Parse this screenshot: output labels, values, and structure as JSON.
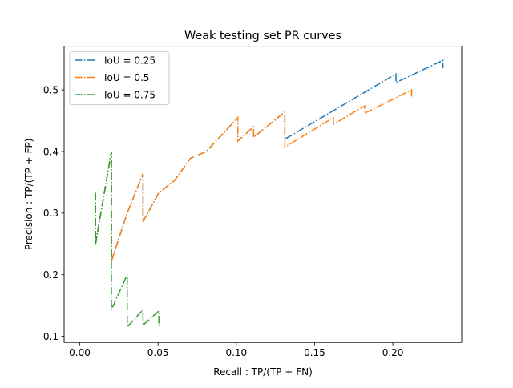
{
  "chart_data": {
    "type": "line",
    "title": "Weak testing set PR curves",
    "xlabel": "Recall : TP/(TP + FN)",
    "ylabel": "Precision : TP/(TP + FP)",
    "xlim": [
      -0.01,
      0.244
    ],
    "ylim": [
      0.09,
      0.571
    ],
    "xticks": [
      0.0,
      0.05,
      0.1,
      0.15,
      0.2
    ],
    "xtick_labels": [
      "0.00",
      "0.05",
      "0.10",
      "0.15",
      "0.20"
    ],
    "yticks": [
      0.1,
      0.2,
      0.3,
      0.4,
      0.5
    ],
    "ytick_labels": [
      "0.1",
      "0.2",
      "0.3",
      "0.4",
      "0.5"
    ],
    "grid": false,
    "legend_position": "top-left",
    "line_style": "dash-dot",
    "series": [
      {
        "name": "IoU = 0.25",
        "color": "#1f77b4",
        "points": [
          [
            0.0101,
            0.333
          ],
          [
            0.0101,
            0.25
          ],
          [
            0.0202,
            0.4
          ],
          [
            0.0202,
            0.222
          ],
          [
            0.0303,
            0.3
          ],
          [
            0.0404,
            0.364
          ],
          [
            0.0404,
            0.286
          ],
          [
            0.0505,
            0.333
          ],
          [
            0.0606,
            0.353
          ],
          [
            0.0707,
            0.389
          ],
          [
            0.0808,
            0.4
          ],
          [
            0.101,
            0.455
          ],
          [
            0.101,
            0.417
          ],
          [
            0.111,
            0.44
          ],
          [
            0.111,
            0.423
          ],
          [
            0.131,
            0.464
          ],
          [
            0.131,
            0.42
          ],
          [
            0.202,
            0.526
          ],
          [
            0.202,
            0.512
          ],
          [
            0.232,
            0.548
          ],
          [
            0.232,
            0.535
          ]
        ]
      },
      {
        "name": "IoU = 0.5",
        "color": "#ff7f0e",
        "points": [
          [
            0.0101,
            0.333
          ],
          [
            0.0101,
            0.25
          ],
          [
            0.0202,
            0.4
          ],
          [
            0.0202,
            0.222
          ],
          [
            0.0303,
            0.3
          ],
          [
            0.0404,
            0.364
          ],
          [
            0.0404,
            0.286
          ],
          [
            0.0505,
            0.333
          ],
          [
            0.0606,
            0.353
          ],
          [
            0.0707,
            0.389
          ],
          [
            0.0808,
            0.4
          ],
          [
            0.101,
            0.455
          ],
          [
            0.101,
            0.417
          ],
          [
            0.111,
            0.44
          ],
          [
            0.111,
            0.423
          ],
          [
            0.131,
            0.464
          ],
          [
            0.131,
            0.407
          ],
          [
            0.162,
            0.455
          ],
          [
            0.162,
            0.444
          ],
          [
            0.182,
            0.474
          ],
          [
            0.182,
            0.462
          ],
          [
            0.212,
            0.5
          ],
          [
            0.212,
            0.488
          ]
        ]
      },
      {
        "name": "IoU = 0.75",
        "color": "#2ca02c",
        "points": [
          [
            0.0101,
            0.333
          ],
          [
            0.0101,
            0.25
          ],
          [
            0.0202,
            0.4
          ],
          [
            0.0202,
            0.222
          ],
          [
            0.0202,
            0.143
          ],
          [
            0.0303,
            0.2
          ],
          [
            0.0303,
            0.115
          ],
          [
            0.0404,
            0.143
          ],
          [
            0.0404,
            0.118
          ],
          [
            0.0505,
            0.141
          ],
          [
            0.0505,
            0.117
          ]
        ]
      }
    ]
  }
}
